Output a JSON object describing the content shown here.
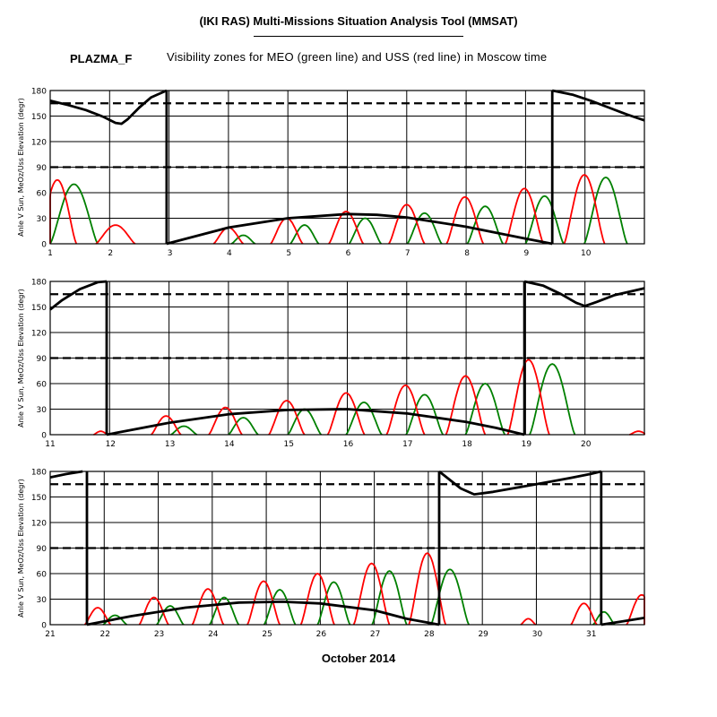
{
  "header": {
    "title": "(IKI RAS) Multi-Missions Situation Analysis Tool (MMSAT)",
    "satellite": "PLAZMA_F",
    "subtitle": "Visibility zones for MEO (green line) and USS (red line) in Moscow time",
    "month_label": "October 2014"
  },
  "chart_data": [
    {
      "type": "line",
      "ylabel": "Anle V Sun, MeOz/Uss Elevation (degr)",
      "xlim": [
        1,
        11
      ],
      "ylim": [
        0,
        180
      ],
      "x_ticks": [
        1,
        2,
        3,
        4,
        5,
        6,
        7,
        8,
        9,
        10
      ],
      "y_ticks": [
        0,
        30,
        60,
        90,
        120,
        150,
        180
      ],
      "reference_lines": [
        90,
        165
      ],
      "grid": true,
      "colors": {
        "sun": "#000000",
        "green": "#008000",
        "red": "#ff0000"
      },
      "series": [
        {
          "color": "sun",
          "points": [
            [
              1.0,
              168
            ],
            [
              1.3,
              163
            ],
            [
              1.6,
              157
            ],
            [
              1.9,
              149
            ],
            [
              2.1,
              142
            ],
            [
              2.2,
              141
            ],
            [
              2.3,
              146
            ],
            [
              2.5,
              160
            ],
            [
              2.7,
              172
            ],
            [
              2.96,
              180
            ]
          ]
        },
        {
          "color": "sun",
          "points": [
            [
              2.96,
              180
            ],
            [
              2.96,
              0
            ]
          ]
        },
        {
          "color": "sun",
          "points": [
            [
              2.96,
              0
            ],
            [
              4.0,
              19
            ],
            [
              5.0,
              30
            ],
            [
              6.0,
              35
            ],
            [
              6.5,
              34
            ],
            [
              7.0,
              31
            ],
            [
              8.0,
              20
            ],
            [
              9.0,
              6
            ],
            [
              9.45,
              0
            ]
          ]
        },
        {
          "color": "sun",
          "points": [
            [
              9.45,
              0
            ],
            [
              9.45,
              180
            ]
          ]
        },
        {
          "color": "sun",
          "points": [
            [
              9.45,
              180
            ],
            [
              9.8,
              175
            ],
            [
              10.1,
              168
            ],
            [
              10.4,
              160
            ],
            [
              10.7,
              152
            ],
            [
              11.0,
              145
            ]
          ]
        }
      ],
      "passes": {
        "red": [
          [
            1.12,
            75,
            0.32
          ],
          [
            2.1,
            22,
            0.33
          ],
          [
            4.0,
            19,
            0.25
          ],
          [
            4.98,
            30,
            0.27
          ],
          [
            5.98,
            38,
            0.29
          ],
          [
            7.0,
            46,
            0.3
          ],
          [
            7.98,
            55,
            0.31
          ],
          [
            8.98,
            65,
            0.32
          ],
          [
            9.99,
            81,
            0.34
          ]
        ],
        "green": [
          [
            1.4,
            70,
            0.4
          ],
          [
            4.25,
            10,
            0.2
          ],
          [
            5.28,
            22,
            0.24
          ],
          [
            6.3,
            30,
            0.27
          ],
          [
            7.3,
            36,
            0.29
          ],
          [
            8.32,
            44,
            0.3
          ],
          [
            9.32,
            56,
            0.32
          ],
          [
            10.35,
            78,
            0.36
          ]
        ]
      }
    },
    {
      "type": "line",
      "ylabel": "Anle V Sun, MeOz/Uss Elevation (degr)",
      "xlim": [
        11,
        21
      ],
      "ylim": [
        0,
        180
      ],
      "x_ticks": [
        11,
        12,
        13,
        14,
        15,
        16,
        17,
        18,
        19,
        20
      ],
      "y_ticks": [
        0,
        30,
        60,
        90,
        120,
        150,
        180
      ],
      "reference_lines": [
        90,
        165
      ],
      "grid": true,
      "colors": {
        "sun": "#000000",
        "green": "#008000",
        "red": "#ff0000"
      },
      "series": [
        {
          "color": "sun",
          "points": [
            [
              11.0,
              147
            ],
            [
              11.2,
              158
            ],
            [
              11.5,
              171
            ],
            [
              11.8,
              179
            ],
            [
              11.95,
              180
            ]
          ]
        },
        {
          "color": "sun",
          "points": [
            [
              11.95,
              180
            ],
            [
              11.95,
              0
            ]
          ]
        },
        {
          "color": "sun",
          "points": [
            [
              11.95,
              0
            ],
            [
              13.0,
              14
            ],
            [
              14.0,
              24
            ],
            [
              15.0,
              29
            ],
            [
              16.0,
              30
            ],
            [
              17.0,
              25
            ],
            [
              18.0,
              15
            ],
            [
              18.5,
              8
            ],
            [
              18.98,
              0
            ]
          ]
        },
        {
          "color": "sun",
          "points": [
            [
              18.98,
              0
            ],
            [
              18.98,
              180
            ]
          ]
        },
        {
          "color": "sun",
          "points": [
            [
              18.98,
              180
            ],
            [
              19.3,
              175
            ],
            [
              19.6,
              165
            ],
            [
              19.85,
              155
            ],
            [
              20.0,
              151
            ],
            [
              20.2,
              156
            ],
            [
              20.5,
              164
            ],
            [
              21.0,
              172
            ]
          ]
        }
      ],
      "passes": {
        "red": [
          [
            11.85,
            4,
            0.12
          ],
          [
            12.95,
            22,
            0.25
          ],
          [
            13.95,
            32,
            0.28
          ],
          [
            14.98,
            40,
            0.3
          ],
          [
            15.98,
            49,
            0.31
          ],
          [
            16.98,
            58,
            0.32
          ],
          [
            17.99,
            69,
            0.33
          ],
          [
            19.05,
            88,
            0.35
          ],
          [
            20.9,
            4,
            0.15
          ]
        ],
        "green": [
          [
            13.25,
            10,
            0.22
          ],
          [
            14.25,
            20,
            0.25
          ],
          [
            15.28,
            30,
            0.28
          ],
          [
            16.28,
            38,
            0.3
          ],
          [
            17.3,
            47,
            0.31
          ],
          [
            18.32,
            60,
            0.33
          ],
          [
            19.45,
            83,
            0.38
          ]
        ]
      }
    },
    {
      "type": "line",
      "ylabel": "Anle V Sun, MeOz/Uss Elevation (degr)",
      "xlim": [
        21,
        32
      ],
      "ylim": [
        0,
        180
      ],
      "x_ticks": [
        21,
        22,
        23,
        24,
        25,
        26,
        27,
        28,
        29,
        30,
        31
      ],
      "y_ticks": [
        0,
        30,
        60,
        90,
        120,
        150,
        180
      ],
      "reference_lines": [
        90,
        165
      ],
      "grid": true,
      "colors": {
        "sun": "#000000",
        "green": "#008000",
        "red": "#ff0000"
      },
      "series": [
        {
          "color": "sun",
          "points": [
            [
              21.0,
              173
            ],
            [
              21.3,
              177
            ],
            [
              21.6,
              180
            ]
          ]
        },
        {
          "color": "sun",
          "points": [
            [
              21.68,
              180
            ],
            [
              21.68,
              0
            ]
          ]
        },
        {
          "color": "sun",
          "points": [
            [
              21.68,
              0
            ],
            [
              22.5,
              10
            ],
            [
              23.5,
              20
            ],
            [
              24.5,
              26
            ],
            [
              25.3,
              27
            ],
            [
              26.0,
              25
            ],
            [
              27.0,
              17
            ],
            [
              27.6,
              7
            ],
            [
              28.2,
              0
            ]
          ]
        },
        {
          "color": "sun",
          "points": [
            [
              28.2,
              0
            ],
            [
              28.2,
              180
            ]
          ]
        },
        {
          "color": "sun",
          "points": [
            [
              28.2,
              180
            ],
            [
              28.4,
              170
            ],
            [
              28.6,
              160
            ],
            [
              28.85,
              153
            ],
            [
              29.2,
              156
            ],
            [
              30.0,
              165
            ],
            [
              30.6,
              172
            ],
            [
              31.0,
              177
            ],
            [
              31.2,
              180
            ]
          ]
        },
        {
          "color": "sun",
          "points": [
            [
              31.2,
              180
            ],
            [
              31.2,
              0
            ]
          ]
        },
        {
          "color": "sun",
          "points": [
            [
              31.2,
              0
            ],
            [
              31.6,
              4
            ],
            [
              32.0,
              8
            ]
          ]
        }
      ],
      "passes": {
        "red": [
          [
            21.88,
            20,
            0.24
          ],
          [
            22.92,
            32,
            0.27
          ],
          [
            23.92,
            42,
            0.29
          ],
          [
            24.95,
            51,
            0.3
          ],
          [
            25.95,
            60,
            0.31
          ],
          [
            26.95,
            72,
            0.33
          ],
          [
            27.98,
            84,
            0.34
          ],
          [
            29.85,
            7,
            0.14
          ],
          [
            30.88,
            25,
            0.24
          ],
          [
            31.95,
            35,
            0.28
          ]
        ],
        "green": [
          [
            22.2,
            11,
            0.22
          ],
          [
            23.22,
            22,
            0.25
          ],
          [
            24.22,
            32,
            0.27
          ],
          [
            25.25,
            41,
            0.29
          ],
          [
            26.25,
            50,
            0.3
          ],
          [
            27.28,
            63,
            0.32
          ],
          [
            28.4,
            65,
            0.35
          ],
          [
            31.25,
            15,
            0.2
          ]
        ]
      }
    }
  ]
}
